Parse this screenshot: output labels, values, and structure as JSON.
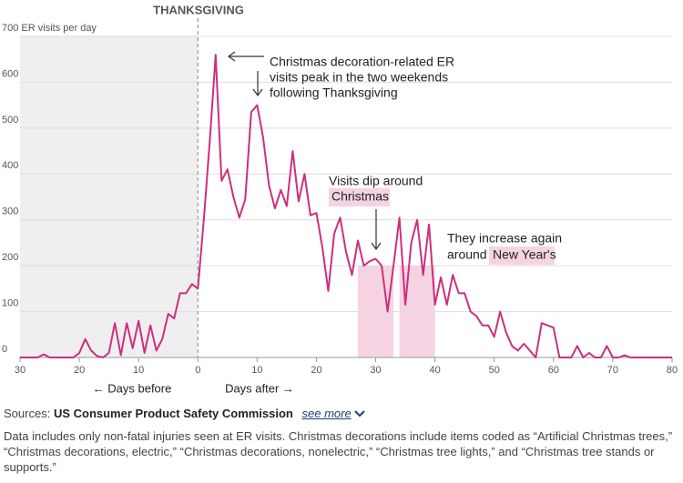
{
  "chart_data": {
    "type": "line",
    "top_label": "THANKSGIVING",
    "x": [
      -30,
      -29,
      -28,
      -27,
      -26,
      -25,
      -24,
      -23,
      -22,
      -21,
      -20,
      -19,
      -18,
      -17,
      -16,
      -15,
      -14,
      -13,
      -12,
      -11,
      -10,
      -9,
      -8,
      -7,
      -6,
      -5,
      -4,
      -3,
      -2,
      -1,
      0,
      1,
      2,
      3,
      4,
      5,
      6,
      7,
      8,
      9,
      10,
      11,
      12,
      13,
      14,
      15,
      16,
      17,
      18,
      19,
      20,
      21,
      22,
      23,
      24,
      25,
      26,
      27,
      28,
      29,
      30,
      31,
      32,
      33,
      34,
      35,
      36,
      37,
      38,
      39,
      40,
      41,
      42,
      43,
      44,
      45,
      46,
      47,
      48,
      49,
      50,
      51,
      52,
      53,
      54,
      55,
      56,
      57,
      58,
      59,
      60,
      61,
      62,
      63,
      64,
      65,
      66,
      67,
      68,
      69,
      70,
      71,
      72,
      73,
      74,
      75,
      76,
      77,
      78,
      79,
      80
    ],
    "values": [
      0,
      0,
      0,
      0,
      7,
      0,
      0,
      0,
      0,
      0,
      10,
      40,
      15,
      3,
      0,
      10,
      75,
      5,
      75,
      20,
      80,
      10,
      70,
      15,
      40,
      95,
      85,
      140,
      140,
      160,
      150,
      300,
      470,
      660,
      385,
      410,
      350,
      305,
      345,
      535,
      550,
      480,
      375,
      325,
      365,
      330,
      450,
      340,
      400,
      310,
      315,
      240,
      145,
      270,
      305,
      230,
      180,
      255,
      200,
      210,
      215,
      200,
      100,
      200,
      305,
      115,
      250,
      300,
      180,
      290,
      115,
      175,
      115,
      180,
      140,
      140,
      100,
      90,
      70,
      70,
      45,
      100,
      55,
      25,
      15,
      30,
      15,
      0,
      75,
      70,
      65,
      0,
      0,
      0,
      25,
      0,
      10,
      0,
      0,
      25,
      0,
      0,
      5,
      0,
      0,
      0,
      0,
      0,
      0,
      0,
      0
    ],
    "color": "#cc2f7f",
    "highlights": [
      [
        27,
        33
      ],
      [
        34,
        40
      ]
    ],
    "before_shade": [
      -30,
      0
    ],
    "xlim": [
      -30,
      80
    ],
    "xticks": [
      {
        "value": -30,
        "label": "30"
      },
      {
        "value": -20,
        "label": "20"
      },
      {
        "value": -10,
        "label": "10"
      },
      0,
      10,
      20,
      30,
      40,
      50,
      60,
      70,
      80
    ],
    "ylim": [
      0,
      700
    ],
    "yticks": [
      0,
      100,
      200,
      300,
      400,
      500,
      600,
      {
        "value": 700,
        "label": "700 ER visits per day"
      }
    ],
    "grid": true,
    "x_labels": [
      "← Days before",
      "Days after →"
    ],
    "annotations": [
      {
        "lines": [
          "Christmas decoration-related ER",
          "visits peak in the two weekends",
          "following Thanksgiving"
        ]
      },
      {
        "lines": [
          "Visits dip around"
        ],
        "highlight": "Christmas"
      },
      {
        "lines": [
          "They increase again",
          "around"
        ],
        "highlight": "New Year's"
      }
    ]
  },
  "footer": {
    "sources_label": "Sources:",
    "source": "US Consumer Product Safety Commission",
    "see_more": "see more",
    "note": "Data includes only non-fatal injuries seen at ER visits. Christmas decorations include items coded as “Artificial Christmas trees,” “Christmas decorations, electric,” “Christmas decorations, nonelectric,” “Christmas tree lights,” and “Christmas tree stands or supports.”"
  }
}
